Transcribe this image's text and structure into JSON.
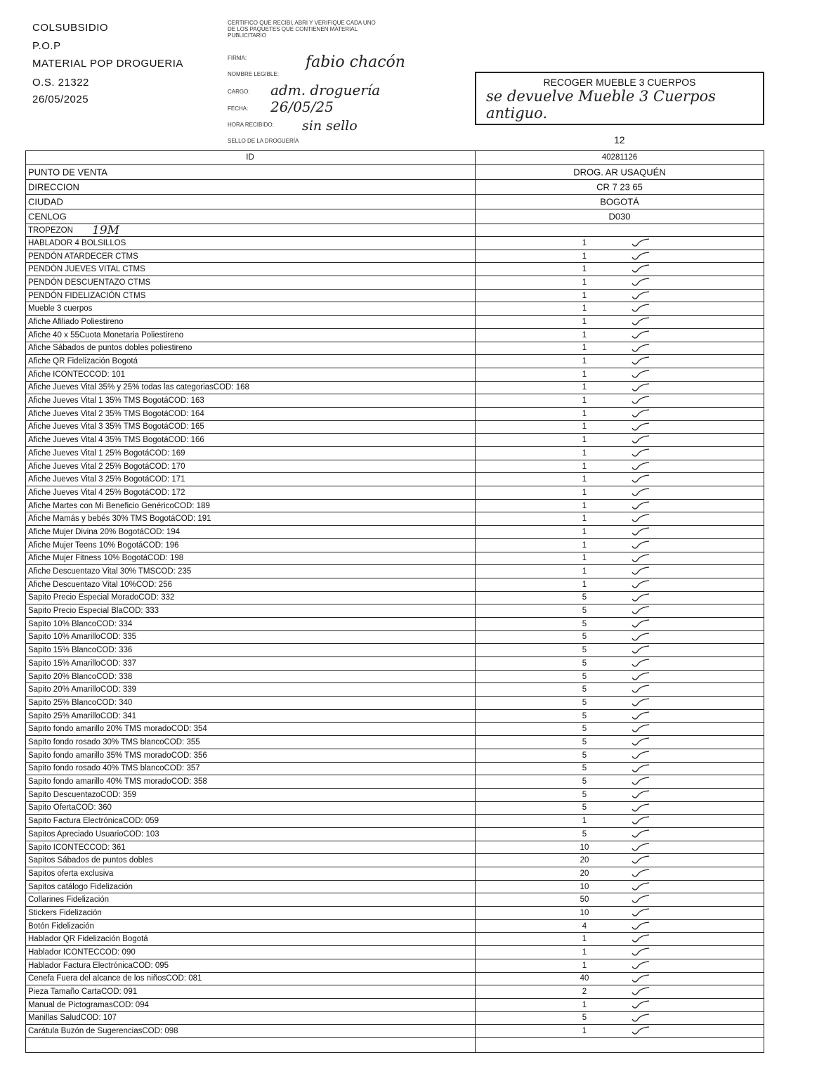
{
  "header": {
    "company": "COLSUBSIDIO",
    "line2": "P.O.P",
    "line3": "MATERIAL POP DROGUERIA",
    "order": "O.S. 21322",
    "date": "26/05/2025"
  },
  "receipt": {
    "certify": "CERTIFICO QUE RECIBI, ABRI Y VERIFIQUE CADA UNO DE LOS PAQUETES QUE CONTIENEN MATERIAL PUBLICITARIO",
    "firma": "FIRMA:",
    "nombre": "NOMBRE LEGIBLE:",
    "cargo": "CARGO:",
    "fecha": "FECHA:",
    "hora": "HORA RECIBIDO:",
    "sello": "SELLO DE LA DROGUERÍA",
    "hand_nombre": "fabio chacón",
    "hand_cargo": "adm. droguería",
    "hand_fecha": "26/05/25",
    "hand_hora": "sin sello"
  },
  "box": {
    "title": "RECOGER MUEBLE 3 CUERPOS",
    "note": "se devuelve Mueble 3 Cuerpos antiguo."
  },
  "count": "12",
  "table": {
    "header": [
      "ID",
      "40281126"
    ],
    "info": [
      [
        "PUNTO DE VENTA",
        "DROG. AR USAQUÉN"
      ],
      [
        "DIRECCION",
        "CR 7 23 65"
      ],
      [
        "CIUDAD",
        "BOGOTÁ"
      ],
      [
        "CENLOG",
        "D030"
      ]
    ],
    "tropezon": {
      "label": "TROPEZON",
      "hand": "19M"
    },
    "items": [
      [
        "HABLADOR 4 BOLSILLOS",
        "1"
      ],
      [
        "PENDÓN ATARDECER CTMS",
        "1"
      ],
      [
        "PENDÓN JUEVES VITAL CTMS",
        "1"
      ],
      [
        "PENDÓN DESCUENTAZO CTMS",
        "1"
      ],
      [
        "PENDÓN FIDELIZACIÓN CTMS",
        "1"
      ],
      [
        "Mueble 3 cuerpos",
        "1"
      ],
      [
        "Afiche Afiliado Poliestireno",
        "1"
      ],
      [
        "Afiche 40 x 55Cuota Monetaria Poliestireno",
        "1"
      ],
      [
        "Afiche Sábados de puntos dobles poliestireno",
        "1"
      ],
      [
        "Afiche QR Fidelización Bogotá",
        "1"
      ],
      [
        "Afiche ICONTECCOD: 101",
        "1"
      ],
      [
        "Afiche Jueves Vital 35% y 25% todas las categoriasCOD: 168",
        "1"
      ],
      [
        "Afiche Jueves Vital 1 35% TMS BogotáCOD: 163",
        "1"
      ],
      [
        "Afiche Jueves Vital 2 35% TMS BogotáCOD: 164",
        "1"
      ],
      [
        "Afiche Jueves Vital 3 35% TMS BogotáCOD: 165",
        "1"
      ],
      [
        "Afiche Jueves Vital 4 35% TMS BogotáCOD: 166",
        "1"
      ],
      [
        "Afiche Jueves Vital 1 25% BogotáCOD: 169",
        "1"
      ],
      [
        "Afiche Jueves Vital 2 25% BogotáCOD: 170",
        "1"
      ],
      [
        "Afiche Jueves Vital 3 25% BogotáCOD: 171",
        "1"
      ],
      [
        "Afiche Jueves Vital 4 25% BogotáCOD: 172",
        "1"
      ],
      [
        "Afiche Martes con Mi Beneficio GenéricoCOD: 189",
        "1"
      ],
      [
        "Afiche Mamás y bebés 30% TMS BogotáCOD: 191",
        "1"
      ],
      [
        "Afiche Mujer Divina 20% BogotáCOD: 194",
        "1"
      ],
      [
        "Afiche Mujer Teens 10% BogotáCOD: 196",
        "1"
      ],
      [
        "Afiche Mujer Fitness 10% BogotáCOD: 198",
        "1"
      ],
      [
        "Afiche Descuentazo Vital 30% TMSCOD: 235",
        "1"
      ],
      [
        "Afiche Descuentazo Vital 10%COD: 256",
        "1"
      ],
      [
        "Sapito Precio Especial MoradoCOD: 332",
        "5"
      ],
      [
        "Sapito Precio Especial BlaCOD: 333",
        "5"
      ],
      [
        "Sapito 10% BlancoCOD: 334",
        "5"
      ],
      [
        "Sapito 10% AmarilloCOD: 335",
        "5"
      ],
      [
        "Sapito 15% BlancoCOD: 336",
        "5"
      ],
      [
        "Sapito 15% AmarilloCOD: 337",
        "5"
      ],
      [
        "Sapito 20% BlancoCOD: 338",
        "5"
      ],
      [
        "Sapito 20% AmarilloCOD: 339",
        "5"
      ],
      [
        "Sapito 25% BlancoCOD: 340",
        "5"
      ],
      [
        "Sapito 25% AmarilloCOD: 341",
        "5"
      ],
      [
        "Sapito fondo amarillo 20% TMS moradoCOD: 354",
        "5"
      ],
      [
        "Sapito fondo rosado 30% TMS blancoCOD: 355",
        "5"
      ],
      [
        "Sapito fondo amarillo 35% TMS moradoCOD: 356",
        "5"
      ],
      [
        "Sapito fondo rosado 40% TMS blancoCOD: 357",
        "5"
      ],
      [
        "Sapito fondo amarillo 40% TMS moradoCOD: 358",
        "5"
      ],
      [
        "Sapito DescuentazoCOD: 359",
        "5"
      ],
      [
        "Sapito OfertaCOD: 360",
        "5"
      ],
      [
        "Sapito Factura ElectrónicaCOD: 059",
        "1"
      ],
      [
        "Sapitos Apreciado UsuarioCOD: 103",
        "5"
      ],
      [
        "Sapito ICONTECCOD: 361",
        "10"
      ],
      [
        "Sapitos Sábados de puntos dobles",
        "20"
      ],
      [
        "Sapitos oferta exclusiva",
        "20"
      ],
      [
        "Sapitos catálogo Fidelización",
        "10"
      ],
      [
        "Collarines Fidelización",
        "50"
      ],
      [
        "Stickers Fidelización",
        "10"
      ],
      [
        "Botón Fidelización",
        "4"
      ],
      [
        "Hablador QR Fidelización Bogotá",
        "1"
      ],
      [
        "Hablador ICONTECCOD: 090",
        "1"
      ],
      [
        "Hablador Factura ElectrónicaCOD: 095",
        "1"
      ],
      [
        "Cenefa Fuera del alcance de los niñosCOD: 081",
        "40"
      ],
      [
        "Pieza Tamaño CartaCOD: 091",
        "2"
      ],
      [
        "Manual de PictogramasCOD: 094",
        "1"
      ],
      [
        "Manillas SaludCOD: 107",
        "5"
      ],
      [
        "Carátula Buzón de SugerenciasCOD: 098",
        "1"
      ]
    ]
  }
}
